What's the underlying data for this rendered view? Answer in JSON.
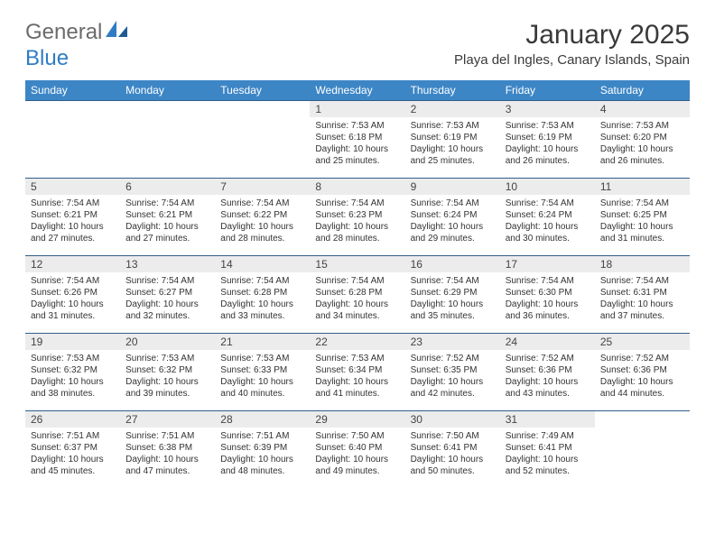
{
  "brand": {
    "part1": "General",
    "part2": "Blue"
  },
  "title": "January 2025",
  "location": "Playa del Ingles, Canary Islands, Spain",
  "colors": {
    "header_bg": "#3d86c6",
    "header_text": "#ffffff",
    "row_border": "#2f5e8a",
    "daynum_bg": "#ececec",
    "logo_gray": "#6b6b6b",
    "logo_blue": "#2f7cc4",
    "text": "#333333",
    "page_bg": "#ffffff"
  },
  "typography": {
    "title_fontsize": 30,
    "location_fontsize": 15,
    "dayheader_fontsize": 12,
    "daynum_fontsize": 12,
    "cell_fontsize": 10
  },
  "day_headers": [
    "Sunday",
    "Monday",
    "Tuesday",
    "Wednesday",
    "Thursday",
    "Friday",
    "Saturday"
  ],
  "weeks": [
    [
      {
        "n": "",
        "sr": "",
        "ss": "",
        "dl": ""
      },
      {
        "n": "",
        "sr": "",
        "ss": "",
        "dl": ""
      },
      {
        "n": "",
        "sr": "",
        "ss": "",
        "dl": ""
      },
      {
        "n": "1",
        "sr": "7:53 AM",
        "ss": "6:18 PM",
        "dl": "10 hours and 25 minutes."
      },
      {
        "n": "2",
        "sr": "7:53 AM",
        "ss": "6:19 PM",
        "dl": "10 hours and 25 minutes."
      },
      {
        "n": "3",
        "sr": "7:53 AM",
        "ss": "6:19 PM",
        "dl": "10 hours and 26 minutes."
      },
      {
        "n": "4",
        "sr": "7:53 AM",
        "ss": "6:20 PM",
        "dl": "10 hours and 26 minutes."
      }
    ],
    [
      {
        "n": "5",
        "sr": "7:54 AM",
        "ss": "6:21 PM",
        "dl": "10 hours and 27 minutes."
      },
      {
        "n": "6",
        "sr": "7:54 AM",
        "ss": "6:21 PM",
        "dl": "10 hours and 27 minutes."
      },
      {
        "n": "7",
        "sr": "7:54 AM",
        "ss": "6:22 PM",
        "dl": "10 hours and 28 minutes."
      },
      {
        "n": "8",
        "sr": "7:54 AM",
        "ss": "6:23 PM",
        "dl": "10 hours and 28 minutes."
      },
      {
        "n": "9",
        "sr": "7:54 AM",
        "ss": "6:24 PM",
        "dl": "10 hours and 29 minutes."
      },
      {
        "n": "10",
        "sr": "7:54 AM",
        "ss": "6:24 PM",
        "dl": "10 hours and 30 minutes."
      },
      {
        "n": "11",
        "sr": "7:54 AM",
        "ss": "6:25 PM",
        "dl": "10 hours and 31 minutes."
      }
    ],
    [
      {
        "n": "12",
        "sr": "7:54 AM",
        "ss": "6:26 PM",
        "dl": "10 hours and 31 minutes."
      },
      {
        "n": "13",
        "sr": "7:54 AM",
        "ss": "6:27 PM",
        "dl": "10 hours and 32 minutes."
      },
      {
        "n": "14",
        "sr": "7:54 AM",
        "ss": "6:28 PM",
        "dl": "10 hours and 33 minutes."
      },
      {
        "n": "15",
        "sr": "7:54 AM",
        "ss": "6:28 PM",
        "dl": "10 hours and 34 minutes."
      },
      {
        "n": "16",
        "sr": "7:54 AM",
        "ss": "6:29 PM",
        "dl": "10 hours and 35 minutes."
      },
      {
        "n": "17",
        "sr": "7:54 AM",
        "ss": "6:30 PM",
        "dl": "10 hours and 36 minutes."
      },
      {
        "n": "18",
        "sr": "7:54 AM",
        "ss": "6:31 PM",
        "dl": "10 hours and 37 minutes."
      }
    ],
    [
      {
        "n": "19",
        "sr": "7:53 AM",
        "ss": "6:32 PM",
        "dl": "10 hours and 38 minutes."
      },
      {
        "n": "20",
        "sr": "7:53 AM",
        "ss": "6:32 PM",
        "dl": "10 hours and 39 minutes."
      },
      {
        "n": "21",
        "sr": "7:53 AM",
        "ss": "6:33 PM",
        "dl": "10 hours and 40 minutes."
      },
      {
        "n": "22",
        "sr": "7:53 AM",
        "ss": "6:34 PM",
        "dl": "10 hours and 41 minutes."
      },
      {
        "n": "23",
        "sr": "7:52 AM",
        "ss": "6:35 PM",
        "dl": "10 hours and 42 minutes."
      },
      {
        "n": "24",
        "sr": "7:52 AM",
        "ss": "6:36 PM",
        "dl": "10 hours and 43 minutes."
      },
      {
        "n": "25",
        "sr": "7:52 AM",
        "ss": "6:36 PM",
        "dl": "10 hours and 44 minutes."
      }
    ],
    [
      {
        "n": "26",
        "sr": "7:51 AM",
        "ss": "6:37 PM",
        "dl": "10 hours and 45 minutes."
      },
      {
        "n": "27",
        "sr": "7:51 AM",
        "ss": "6:38 PM",
        "dl": "10 hours and 47 minutes."
      },
      {
        "n": "28",
        "sr": "7:51 AM",
        "ss": "6:39 PM",
        "dl": "10 hours and 48 minutes."
      },
      {
        "n": "29",
        "sr": "7:50 AM",
        "ss": "6:40 PM",
        "dl": "10 hours and 49 minutes."
      },
      {
        "n": "30",
        "sr": "7:50 AM",
        "ss": "6:41 PM",
        "dl": "10 hours and 50 minutes."
      },
      {
        "n": "31",
        "sr": "7:49 AM",
        "ss": "6:41 PM",
        "dl": "10 hours and 52 minutes."
      },
      {
        "n": "",
        "sr": "",
        "ss": "",
        "dl": ""
      }
    ]
  ]
}
